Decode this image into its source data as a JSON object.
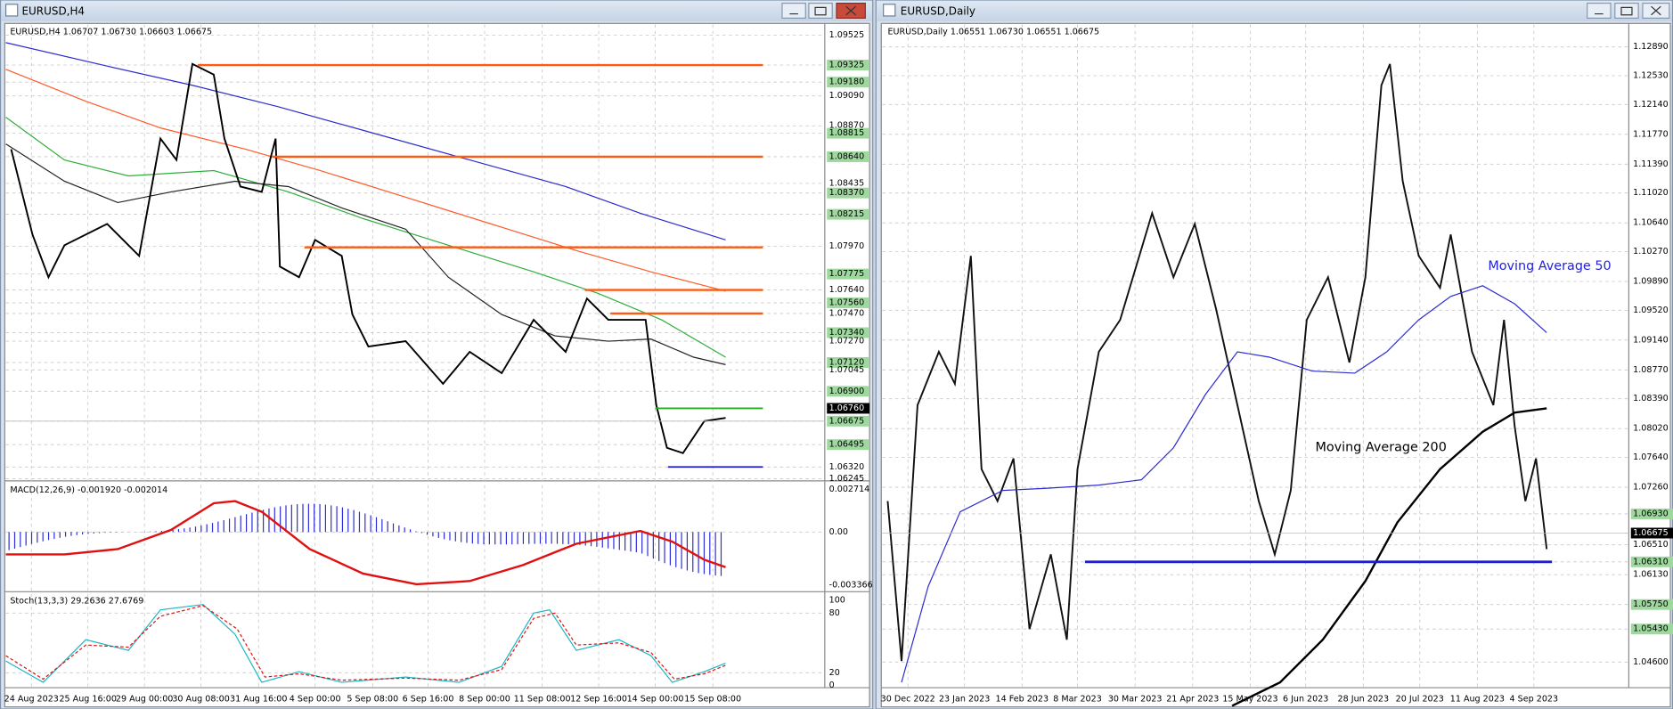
{
  "windows": [
    {
      "title": "EURUSD,H4",
      "info": "EURUSD,H4  1.06707 1.06730 1.06603 1.06675",
      "price_labels": [
        "1.09525",
        "1.09325",
        "1.09180",
        "1.09090",
        "1.08870",
        "1.08815",
        "1.08640",
        "1.08435",
        "1.08370",
        "1.08215",
        "1.07970",
        "1.07775",
        "1.07640",
        "1.07560",
        "1.07470",
        "1.07340",
        "1.07270",
        "1.07120",
        "1.07045",
        "1.06900",
        "1.06760",
        "1.06675",
        "1.06495",
        "1.06320",
        "1.06245"
      ],
      "time_labels": [
        "24 Aug 2023",
        "25 Aug 16:00",
        "29 Aug 00:00",
        "30 Aug 08:00",
        "31 Aug 16:00",
        "4 Sep 00:00",
        "5 Sep 08:00",
        "6 Sep 16:00",
        "8 Sep 00:00",
        "11 Sep 08:00",
        "12 Sep 16:00",
        "14 Sep 00:00",
        "15 Sep 08:00"
      ],
      "macd": {
        "info": "MACD(12,26,9) -0.001920 -0.002014",
        "labels": [
          "0.002714",
          "0.00",
          "-0.003366"
        ]
      },
      "stoch": {
        "info": "Stoch(13,3,3) 29.2636 27.6769",
        "labels": [
          "100",
          "80",
          "20",
          "0"
        ]
      }
    },
    {
      "title": "EURUSD,Daily",
      "info": "EURUSD,Daily  1.06551 1.06730 1.06551 1.06675",
      "price_labels": [
        "1.12890",
        "1.12530",
        "1.12140",
        "1.11770",
        "1.11390",
        "1.11020",
        "1.10640",
        "1.10270",
        "1.09890",
        "1.09520",
        "1.09140",
        "1.08770",
        "1.08390",
        "1.08020",
        "1.07640",
        "1.07260",
        "1.06930",
        "1.06675",
        "1.06510",
        "1.06310",
        "1.06130",
        "1.05750",
        "1.05430",
        "1.04600"
      ],
      "time_labels": [
        "30 Dec 2022",
        "23 Jan 2023",
        "14 Feb 2023",
        "8 Mar 2023",
        "30 Mar 2023",
        "21 Apr 2023",
        "15 May 2023",
        "6 Jun 2023",
        "28 Jun 2023",
        "20 Jul 2023",
        "11 Aug 2023",
        "4 Sep 2023"
      ],
      "annotations": [
        "Moving Average 50",
        "Moving Average 200"
      ]
    }
  ]
}
